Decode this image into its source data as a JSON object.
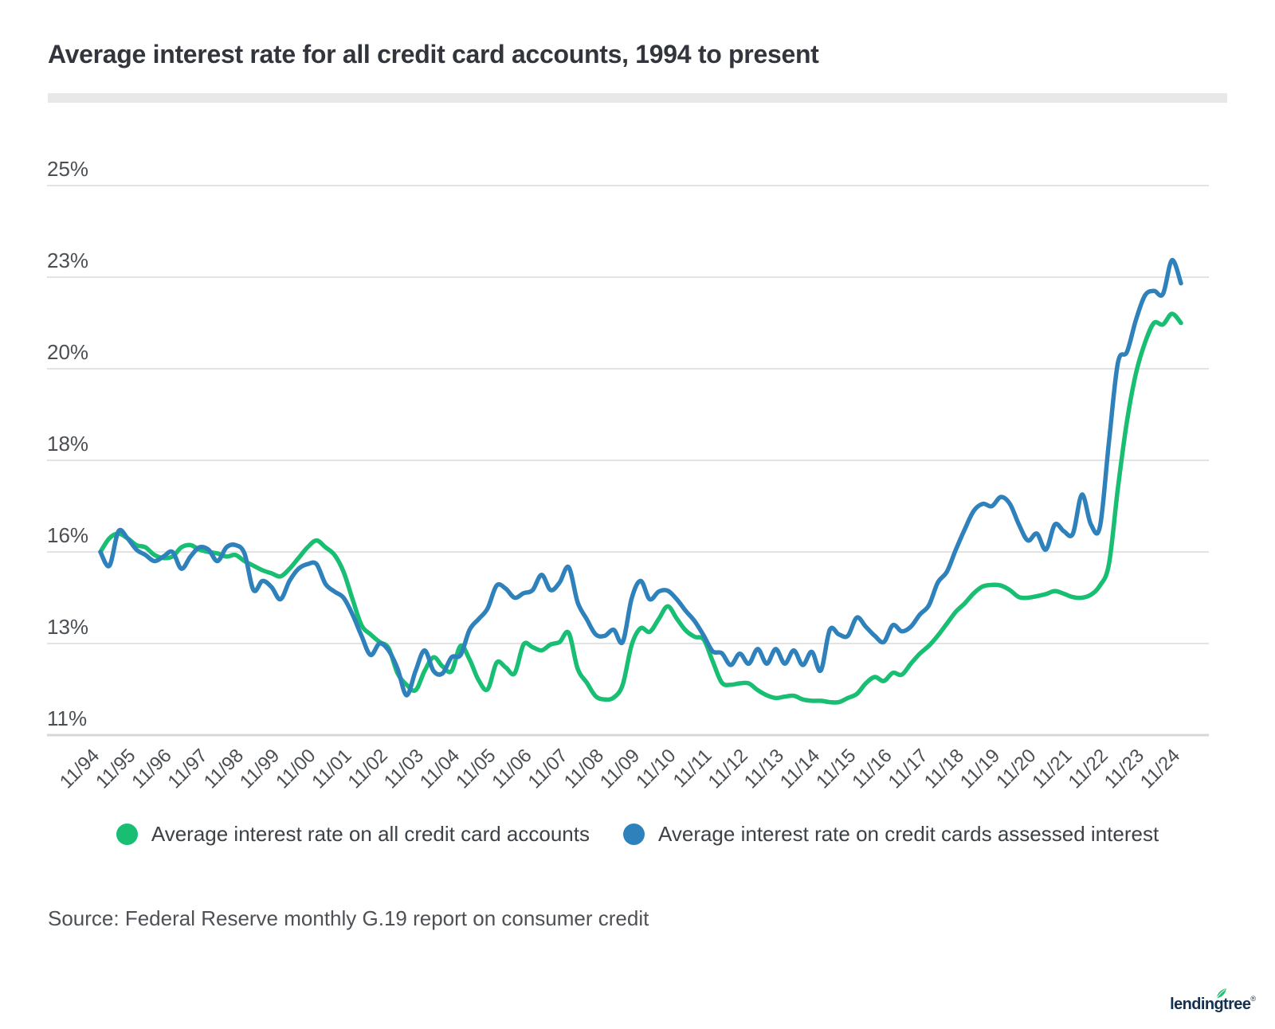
{
  "title": "Average interest rate for all credit card accounts, 1994 to present",
  "source": "Source: Federal Reserve monthly G.19 report on consumer credit",
  "brand": {
    "logo_text": "lendingtree",
    "registered_mark": "®",
    "logo_color": "#14304f",
    "leaf_color": "#1fbe73"
  },
  "legend": [
    {
      "label": "Average interest rate on all credit card accounts",
      "color": "#18be72"
    },
    {
      "label": "Average interest rate on credit cards assessed interest",
      "color": "#2e81bb"
    }
  ],
  "colors": {
    "grid": "#e3e3e3",
    "axis_line": "#d7d7d7",
    "tick_text": "#4b4f54"
  },
  "chart_data": {
    "type": "line",
    "frequency": "quarterly",
    "x_start": "11/94",
    "x_end": "11/24",
    "grid": true,
    "legend_position": "bottom",
    "y_tick_labels": [
      "25%",
      "23%",
      "20%",
      "18%",
      "16%",
      "13%",
      "11%"
    ],
    "y_tick_values": [
      25,
      23,
      20,
      18,
      16,
      13,
      11
    ],
    "x_tick_labels": [
      "11/94",
      "11/95",
      "11/96",
      "11/97",
      "11/98",
      "11/99",
      "11/00",
      "11/01",
      "11/02",
      "11/03",
      "11/04",
      "11/05",
      "11/06",
      "11/07",
      "11/08",
      "11/09",
      "11/10",
      "11/11",
      "11/12",
      "11/13",
      "11/14",
      "11/15",
      "11/16",
      "11/17",
      "11/18",
      "11/19",
      "11/20",
      "11/21",
      "11/22",
      "11/23",
      "11/24"
    ],
    "series": [
      {
        "name": "Average interest rate on all credit card accounts",
        "color": "#18be72",
        "values": [
          16.0,
          16.3,
          16.4,
          16.3,
          16.15,
          16.1,
          15.9,
          15.8,
          15.85,
          16.1,
          16.15,
          16.05,
          16.0,
          15.95,
          15.85,
          15.9,
          15.7,
          15.55,
          15.4,
          15.3,
          15.2,
          15.45,
          15.8,
          16.1,
          16.25,
          16.1,
          15.9,
          15.35,
          14.45,
          13.6,
          13.3,
          13.05,
          12.9,
          12.35,
          12.1,
          11.98,
          12.4,
          12.7,
          12.5,
          12.4,
          12.95,
          12.65,
          12.2,
          12.0,
          12.58,
          12.48,
          12.35,
          12.98,
          12.92,
          12.85,
          12.98,
          13.05,
          13.35,
          12.45,
          12.15,
          11.85,
          11.78,
          11.82,
          12.1,
          12.97,
          13.5,
          13.38,
          13.8,
          14.22,
          13.82,
          13.43,
          13.22,
          13.13,
          12.61,
          12.15,
          12.1,
          12.13,
          12.13,
          11.98,
          11.87,
          11.81,
          11.84,
          11.86,
          11.78,
          11.75,
          11.75,
          11.72,
          11.72,
          11.81,
          11.9,
          12.13,
          12.27,
          12.18,
          12.36,
          12.32,
          12.56,
          12.78,
          12.95,
          13.26,
          13.65,
          14.04,
          14.32,
          14.65,
          14.87,
          14.92,
          14.9,
          14.75,
          14.52,
          14.5,
          14.55,
          14.62,
          14.72,
          14.63,
          14.52,
          14.5,
          14.6,
          14.9,
          15.6,
          17.4,
          18.85,
          19.9,
          20.85,
          21.5,
          21.45,
          21.8,
          21.5
        ]
      },
      {
        "name": "Average interest rate on credit cards assessed interest",
        "color": "#2e81bb",
        "values": [
          16.0,
          15.55,
          16.45,
          16.3,
          16.05,
          15.9,
          15.7,
          15.85,
          16.0,
          15.45,
          15.85,
          16.1,
          16.05,
          15.7,
          16.1,
          16.15,
          15.95,
          14.75,
          15.05,
          14.85,
          14.45,
          15.05,
          15.45,
          15.6,
          15.6,
          14.95,
          14.7,
          14.5,
          13.95,
          13.25,
          12.75,
          13.0,
          12.85,
          12.45,
          11.87,
          12.4,
          12.85,
          12.4,
          12.35,
          12.7,
          12.75,
          13.45,
          13.8,
          14.15,
          14.9,
          14.8,
          14.5,
          14.65,
          14.75,
          15.25,
          14.75,
          15.0,
          15.5,
          14.35,
          13.8,
          13.3,
          13.25,
          13.45,
          13.05,
          14.48,
          15.05,
          14.45,
          14.7,
          14.73,
          14.45,
          14.07,
          13.73,
          13.26,
          12.83,
          12.79,
          12.53,
          12.78,
          12.56,
          12.88,
          12.56,
          12.88,
          12.56,
          12.85,
          12.53,
          12.82,
          12.41,
          13.45,
          13.3,
          13.25,
          13.85,
          13.55,
          13.25,
          13.05,
          13.6,
          13.4,
          13.55,
          13.95,
          14.25,
          15.0,
          15.35,
          16.05,
          16.5,
          16.9,
          17.05,
          17.0,
          17.2,
          17.05,
          16.6,
          16.25,
          16.4,
          16.05,
          16.6,
          16.45,
          16.4,
          17.25,
          16.6,
          16.55,
          18.4,
          20.2,
          20.55,
          21.6,
          22.4,
          22.55,
          22.45,
          23.37,
          22.8
        ]
      }
    ]
  }
}
